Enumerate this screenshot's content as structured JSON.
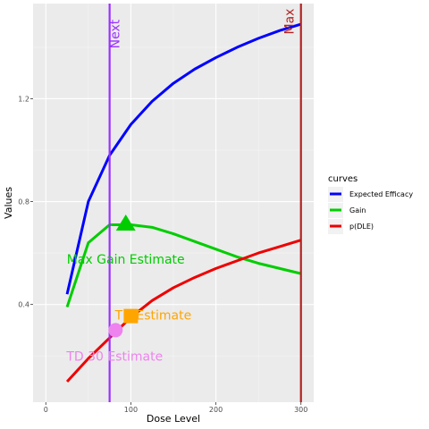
{
  "chart_data": {
    "type": "line",
    "xlabel": "Dose Level",
    "ylabel": "Values",
    "xlim": [
      -15,
      315
    ],
    "ylim": [
      0.02,
      1.57
    ],
    "x_ticks": [
      0,
      100,
      200,
      300
    ],
    "y_ticks": [
      0.4,
      0.8,
      1.2
    ],
    "y_tick_labels": [
      "0.4",
      "0.8",
      "1.2"
    ],
    "grid": true,
    "legend": {
      "title": "curves",
      "placement": "right"
    },
    "series": [
      {
        "name": "Expected Efficacy",
        "color": "#0000ff",
        "x": [
          25,
          50,
          75,
          100,
          125,
          150,
          175,
          200,
          225,
          250,
          275,
          300
        ],
        "y": [
          0.44,
          0.8,
          0.98,
          1.1,
          1.19,
          1.26,
          1.315,
          1.36,
          1.4,
          1.435,
          1.465,
          1.49
        ]
      },
      {
        "name": "Gain",
        "color": "#00cd00",
        "x": [
          25,
          50,
          75,
          100,
          125,
          150,
          175,
          200,
          225,
          250,
          275,
          300
        ],
        "y": [
          0.39,
          0.64,
          0.71,
          0.71,
          0.7,
          0.675,
          0.645,
          0.615,
          0.585,
          0.56,
          0.54,
          0.52
        ]
      },
      {
        "name": "p(DLE)",
        "color": "#ee0000",
        "x": [
          25,
          50,
          75,
          100,
          125,
          150,
          175,
          200,
          225,
          250,
          275,
          300
        ],
        "y": [
          0.1,
          0.19,
          0.27,
          0.35,
          0.415,
          0.465,
          0.505,
          0.54,
          0.57,
          0.6,
          0.625,
          0.65
        ]
      }
    ],
    "vlines": [
      {
        "label": "Next",
        "x": 75,
        "color": "#9b30ff"
      },
      {
        "label": "Max",
        "x": 300,
        "color": "#b22222"
      }
    ],
    "markers": [
      {
        "label": "Max Gain Estimate",
        "x": 94,
        "y": 0.715,
        "shape": "triangle",
        "color": "#00cd00"
      },
      {
        "label": "TD Estimate",
        "x": 100,
        "y": 0.355,
        "shape": "square",
        "color": "#ffa500"
      },
      {
        "label": "TD 30 Estimate",
        "x": 82,
        "y": 0.3,
        "shape": "circle",
        "color": "#ee82ee"
      }
    ]
  }
}
